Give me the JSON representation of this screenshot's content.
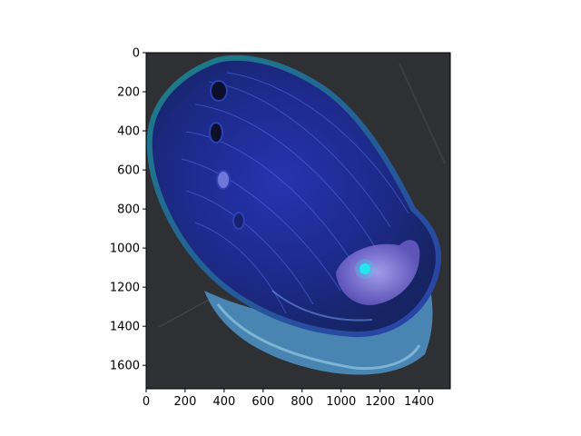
{
  "chart_data": {
    "type": "image",
    "title": "",
    "xlabel": "",
    "ylabel": "",
    "xlim": [
      0,
      1560
    ],
    "ylim": [
      1720,
      0
    ],
    "x_ticks": [
      0,
      200,
      400,
      600,
      800,
      1000,
      1200,
      1400
    ],
    "y_ticks": [
      0,
      200,
      400,
      600,
      800,
      1000,
      1200,
      1400,
      1600
    ],
    "grid": false,
    "image_content": "abalone-shell",
    "colors": {
      "background_slate": "#2b2c30",
      "shell_dark_blue": "#1e2a8c",
      "shell_mid_blue": "#3346d1",
      "shell_teal_rim": "#1d7f86",
      "shell_light_blue": "#6fb0d8",
      "spire_violet": "#8a7bd8",
      "highlight_cyan": "#22e6f0"
    }
  }
}
